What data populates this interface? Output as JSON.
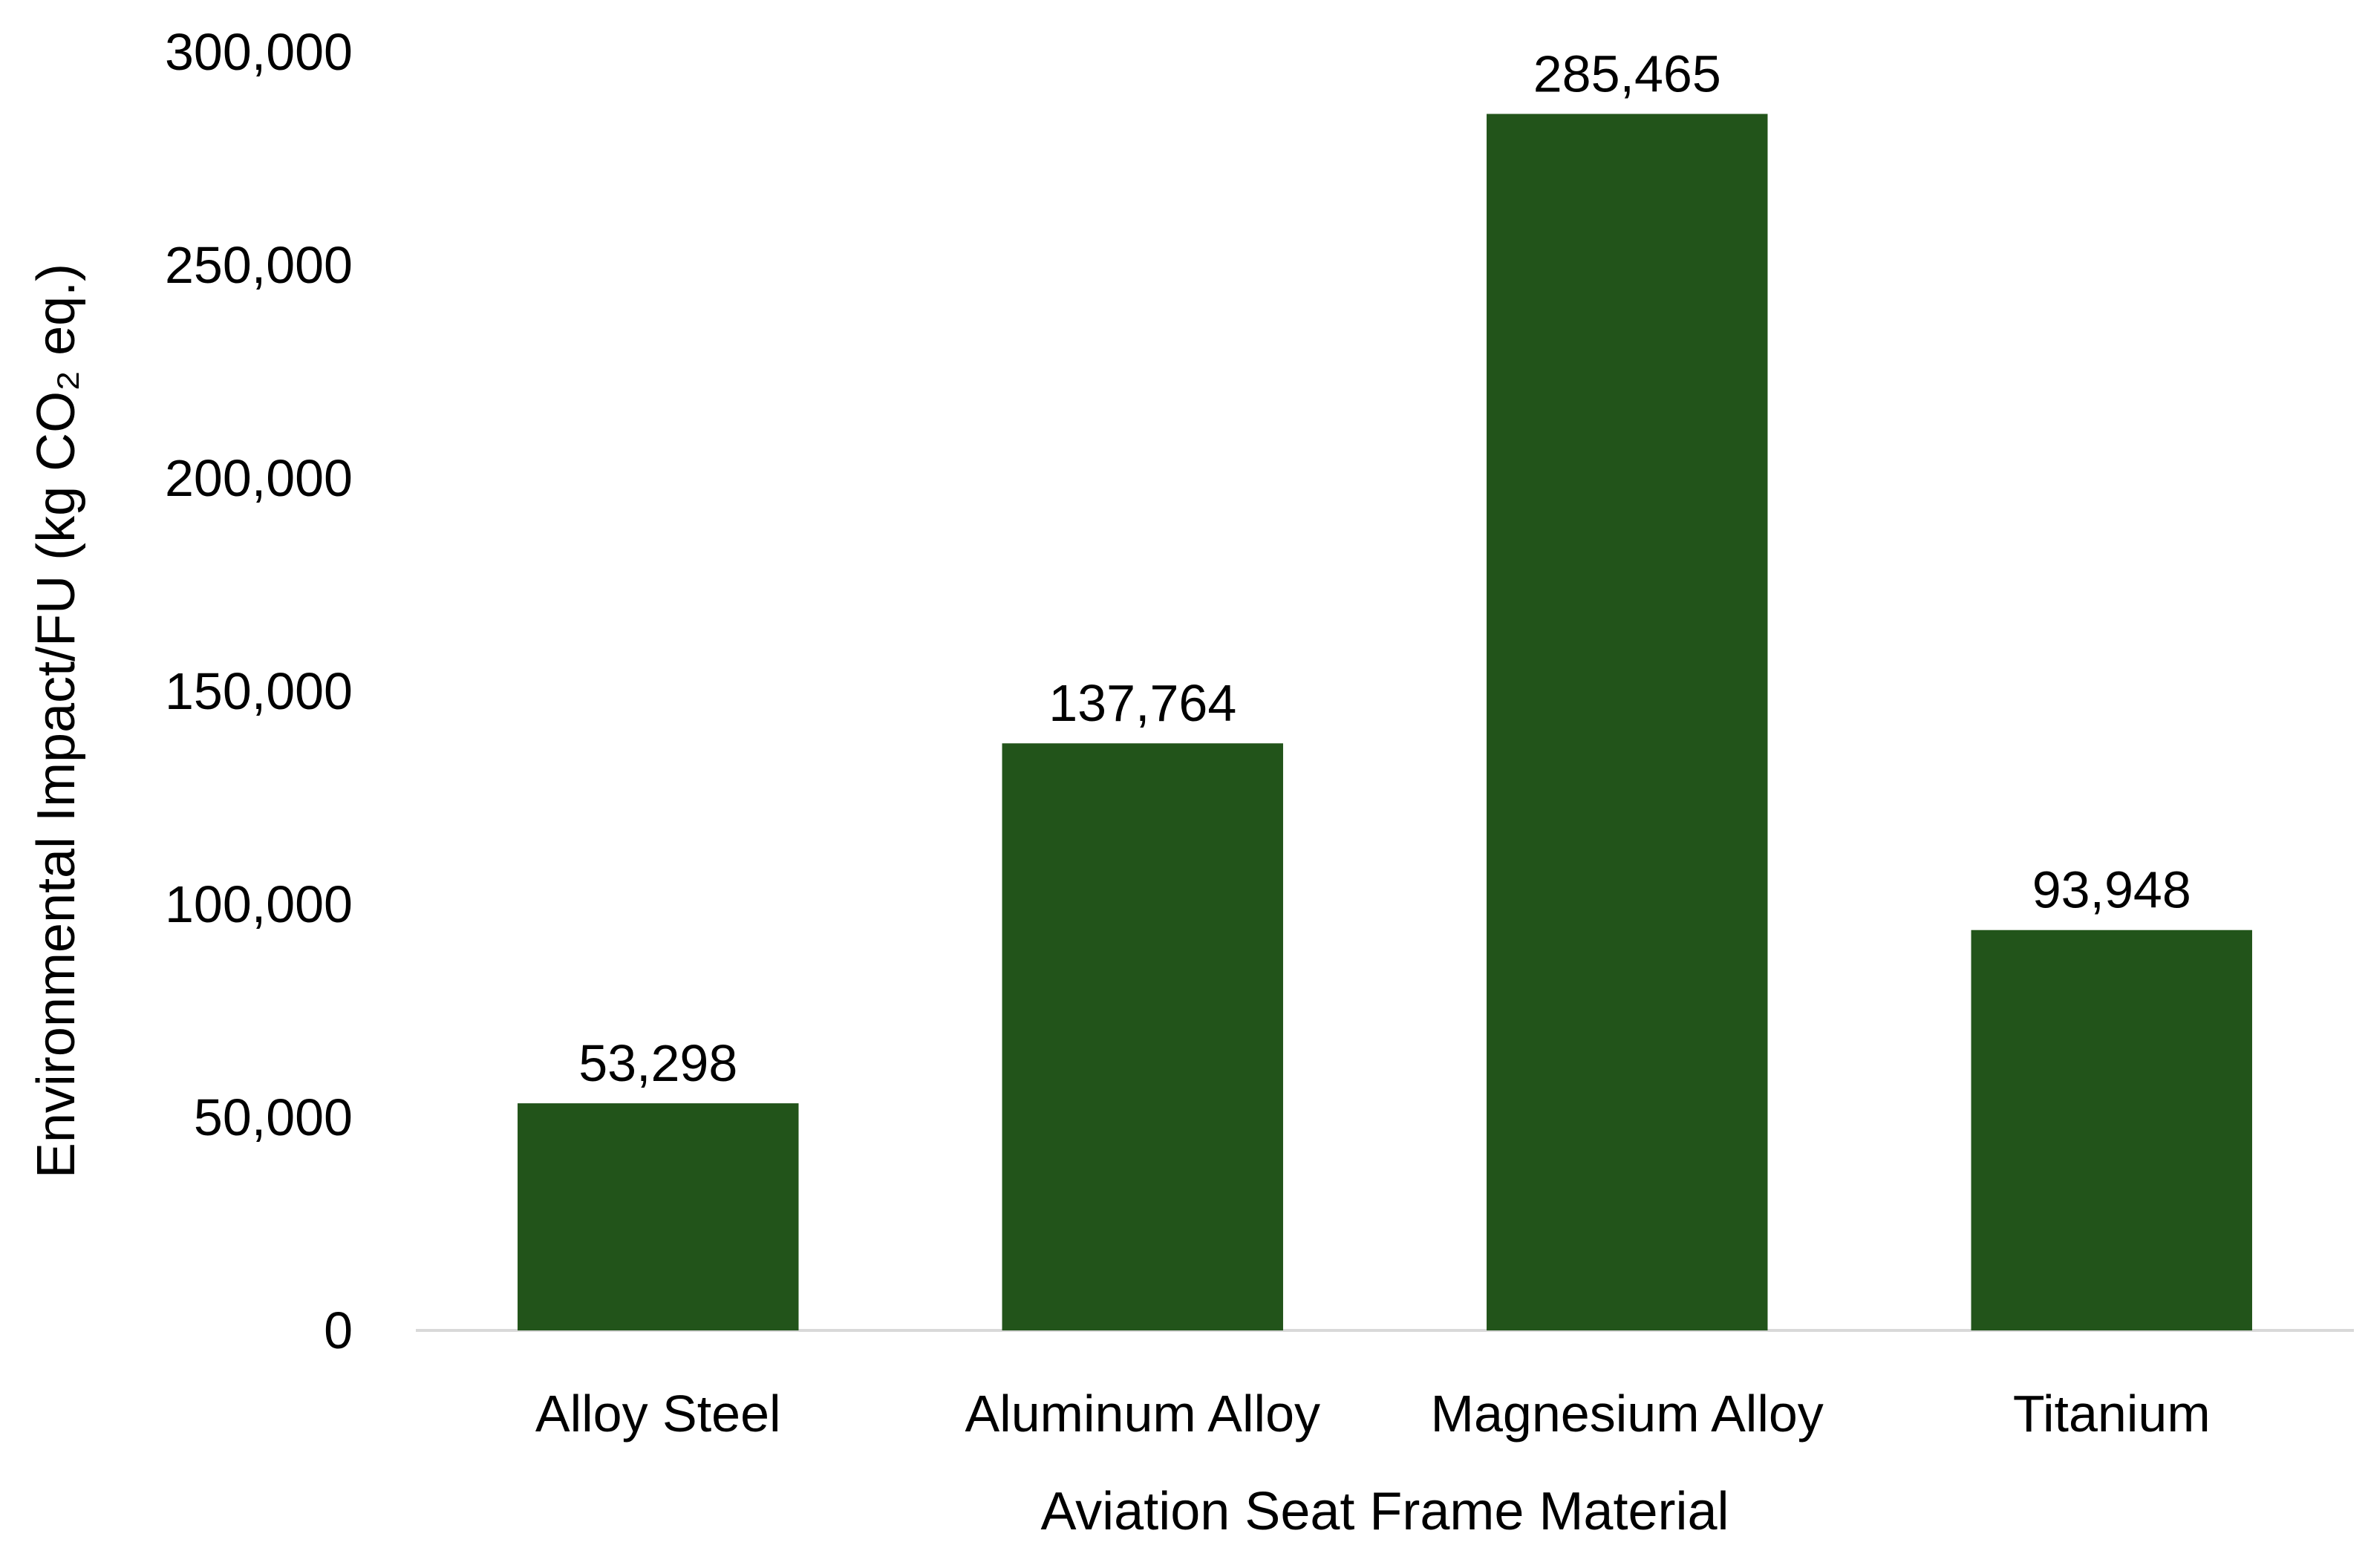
{
  "chart_data": {
    "type": "bar",
    "categories": [
      "Alloy Steel",
      "Aluminum Alloy",
      "Magnesium Alloy",
      "Titanium"
    ],
    "values": [
      53298,
      137764,
      285465,
      93948
    ],
    "data_labels": [
      "53,298",
      "137,764",
      "285,465",
      "93,948"
    ],
    "xlabel": "Aviation Seat Frame Material",
    "ylabel": "Environmental Impact/FU (kg CO₂ eq.)",
    "ylim": [
      0,
      300000
    ],
    "yticks": [
      0,
      50000,
      100000,
      150000,
      200000,
      250000,
      300000
    ],
    "ytick_labels": [
      "0",
      "50,000",
      "100,000",
      "150,000",
      "200,000",
      "250,000",
      "300,000"
    ],
    "grid": false,
    "legend": "none",
    "bar_color": "#22541a",
    "axis_color": "#d9d9d9"
  }
}
